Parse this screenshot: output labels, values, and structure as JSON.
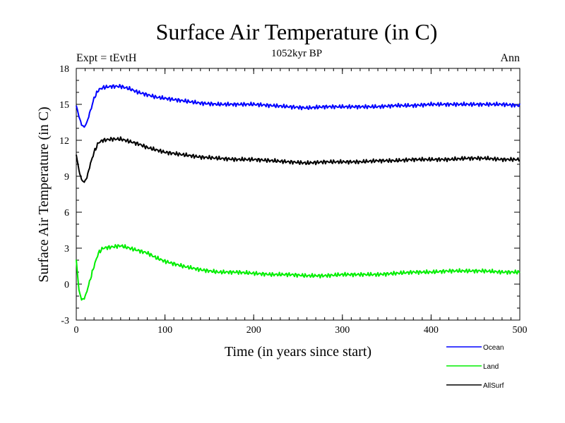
{
  "chart_data": {
    "type": "line",
    "title": "Surface Air Temperature (in C)",
    "subtitle": "1052kyr BP",
    "left_annotation": "Expt = tEvtH",
    "right_annotation": "Ann",
    "xlabel": "Time (in years since start)",
    "ylabel": "Surface Air Temperature (in C)",
    "xlim": [
      0,
      500
    ],
    "ylim": [
      -3,
      18
    ],
    "xticks": [
      0,
      100,
      200,
      300,
      400,
      500
    ],
    "yticks": [
      -3,
      0,
      3,
      6,
      9,
      12,
      15,
      18
    ],
    "legend_position": "bottom-right",
    "x": [
      0,
      3,
      6,
      9,
      12,
      15,
      20,
      25,
      30,
      40,
      50,
      60,
      70,
      80,
      90,
      100,
      120,
      140,
      160,
      180,
      200,
      220,
      240,
      260,
      280,
      300,
      320,
      340,
      360,
      380,
      400,
      420,
      440,
      460,
      480,
      500
    ],
    "series": [
      {
        "name": "Ocean",
        "color": "#0000ff",
        "values": [
          14.9,
          14.0,
          13.3,
          13.1,
          13.5,
          14.2,
          15.5,
          16.2,
          16.4,
          16.5,
          16.5,
          16.3,
          16.0,
          15.8,
          15.6,
          15.5,
          15.3,
          15.1,
          15.0,
          15.0,
          15.0,
          14.9,
          14.8,
          14.7,
          14.8,
          14.8,
          14.8,
          14.8,
          14.9,
          14.9,
          15.0,
          15.0,
          15.0,
          15.0,
          15.0,
          14.9
        ]
      },
      {
        "name": "Land",
        "color": "#00ee00",
        "values": [
          2.0,
          -0.5,
          -1.3,
          -1.2,
          -0.6,
          0.2,
          1.5,
          2.6,
          3.0,
          3.1,
          3.2,
          3.0,
          2.8,
          2.6,
          2.2,
          1.9,
          1.5,
          1.2,
          1.0,
          1.0,
          0.9,
          0.8,
          0.8,
          0.7,
          0.7,
          0.8,
          0.8,
          0.8,
          0.9,
          1.0,
          1.0,
          1.1,
          1.1,
          1.1,
          1.0,
          1.0
        ]
      },
      {
        "name": "AllSurf",
        "color": "#000000",
        "values": [
          10.8,
          9.5,
          8.7,
          8.5,
          8.9,
          9.8,
          11.0,
          11.8,
          12.0,
          12.1,
          12.1,
          11.9,
          11.7,
          11.4,
          11.2,
          11.0,
          10.8,
          10.6,
          10.5,
          10.4,
          10.4,
          10.3,
          10.2,
          10.1,
          10.2,
          10.2,
          10.2,
          10.3,
          10.3,
          10.4,
          10.4,
          10.4,
          10.5,
          10.5,
          10.4,
          10.4
        ]
      }
    ]
  }
}
